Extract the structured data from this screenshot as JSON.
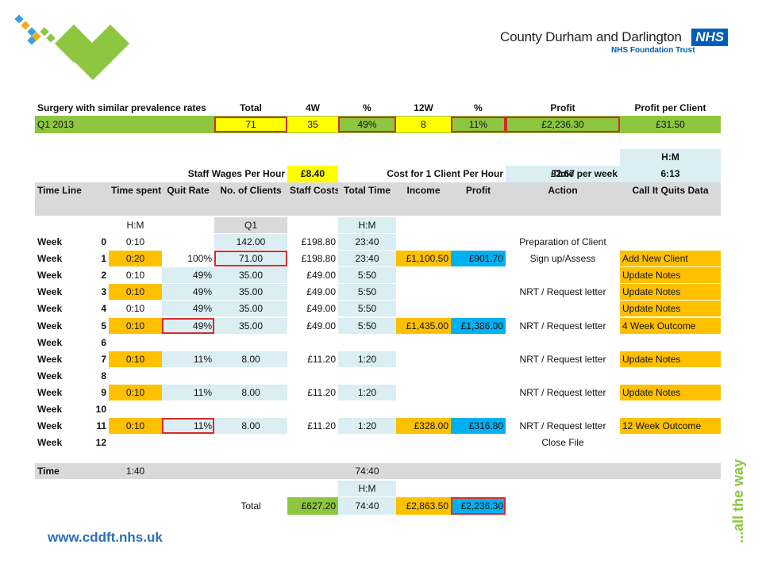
{
  "header": {
    "org_name": "County Durham and Darlington",
    "nhs_badge": "NHS",
    "trust": "NHS Foundation Trust"
  },
  "footer": {
    "url": "www.cddft.nhs.uk"
  },
  "side_text": "...all the way",
  "colors": {
    "green": "#8dc63f",
    "yellow": "#ffff00",
    "orange": "#ffc000",
    "blue": "#00b0f0",
    "light_blue": "#daeef3",
    "grey": "#d9d9d9",
    "nhs_blue": "#005eb8"
  },
  "sheet": {
    "summary": {
      "headers": [
        "Surgery with similar prevalence rates",
        "Total",
        "4W",
        "%",
        "12W",
        "%",
        "Profit",
        "Profit per Client"
      ],
      "row": [
        "Q1 2013",
        "71",
        "35",
        "49%",
        "8",
        "11%",
        "£2,236.30",
        "£31.50"
      ]
    },
    "hm_top": "H:M",
    "staff_wages_label": "Staff Wages Per Hour",
    "staff_wages_value": "£8.40",
    "cost_label": "Cost for 1 Client Per Hour",
    "cost_value": "£2.67",
    "time_per_week_label": "Time per week",
    "time_per_week_value": "6:13",
    "columns": [
      "Time Line",
      "Time spent",
      "Quit Rate",
      "No. of Clients",
      "Staff Costs",
      "Total Time",
      "Income",
      "Profit",
      "Action",
      "Call It Quits Data"
    ],
    "subheaders": {
      "time_spent": "H:M",
      "clients": "Q1",
      "total_time": "H:M"
    },
    "rows": [
      {
        "label": "Week",
        "week": "0",
        "time": "0:10",
        "rate": "",
        "clients": "142.00",
        "staff": "£198.80",
        "total": "23:40",
        "income": "",
        "profit": "",
        "action": "Preparation of Client",
        "cq": ""
      },
      {
        "label": "Week",
        "week": "1",
        "time": "0:20",
        "rate": "100%",
        "clients": "71.00",
        "staff": "£198.80",
        "total": "23:40",
        "income": "£1,100.50",
        "profit": "£901.70",
        "action": "Sign up/Assess",
        "cq": "Add New Client"
      },
      {
        "label": "Week",
        "week": "2",
        "time": "0:10",
        "rate": "49%",
        "clients": "35.00",
        "staff": "£49.00",
        "total": "5:50",
        "income": "",
        "profit": "",
        "action": "",
        "cq": "Update Notes"
      },
      {
        "label": "Week",
        "week": "3",
        "time": "0:10",
        "rate": "49%",
        "clients": "35.00",
        "staff": "£49.00",
        "total": "5:50",
        "income": "",
        "profit": "",
        "action": "NRT / Request letter",
        "cq": "Update Notes"
      },
      {
        "label": "Week",
        "week": "4",
        "time": "0:10",
        "rate": "49%",
        "clients": "35.00",
        "staff": "£49.00",
        "total": "5:50",
        "income": "",
        "profit": "",
        "action": "",
        "cq": "Update Notes"
      },
      {
        "label": "Week",
        "week": "5",
        "time": "0:10",
        "rate": "49%",
        "clients": "35.00",
        "staff": "£49.00",
        "total": "5:50",
        "income": "£1,435.00",
        "profit": "£1,386.00",
        "action": "NRT / Request letter",
        "cq": "4 Week Outcome"
      },
      {
        "label": "Week",
        "week": "6",
        "time": "",
        "rate": "",
        "clients": "",
        "staff": "",
        "total": "",
        "income": "",
        "profit": "",
        "action": "",
        "cq": ""
      },
      {
        "label": "Week",
        "week": "7",
        "time": "0:10",
        "rate": "11%",
        "clients": "8.00",
        "staff": "£11.20",
        "total": "1:20",
        "income": "",
        "profit": "",
        "action": "NRT / Request letter",
        "cq": "Update Notes"
      },
      {
        "label": "Week",
        "week": "8",
        "time": "",
        "rate": "",
        "clients": "",
        "staff": "",
        "total": "",
        "income": "",
        "profit": "",
        "action": "",
        "cq": ""
      },
      {
        "label": "Week",
        "week": "9",
        "time": "0:10",
        "rate": "11%",
        "clients": "8.00",
        "staff": "£11.20",
        "total": "1:20",
        "income": "",
        "profit": "",
        "action": "NRT / Request letter",
        "cq": "Update Notes"
      },
      {
        "label": "Week",
        "week": "10",
        "time": "",
        "rate": "",
        "clients": "",
        "staff": "",
        "total": "",
        "income": "",
        "profit": "",
        "action": "",
        "cq": ""
      },
      {
        "label": "Week",
        "week": "11",
        "time": "0:10",
        "rate": "11%",
        "clients": "8.00",
        "staff": "£11.20",
        "total": "1:20",
        "income": "£328.00",
        "profit": "£316.80",
        "action": "NRT / Request letter",
        "cq": "12 Week Outcome"
      },
      {
        "label": "Week",
        "week": "12",
        "time": "",
        "rate": "",
        "clients": "",
        "staff": "",
        "total": "",
        "income": "",
        "profit": "",
        "action": "Close File",
        "cq": ""
      }
    ],
    "time_row": {
      "label": "Time",
      "time_spent": "1:40",
      "total_time": "74:40"
    },
    "hm_bottom": "H:M",
    "total_row": {
      "label": "Total",
      "staff": "£627.20",
      "total_time": "74:40",
      "income": "£2,863.50",
      "profit": "£2,236.30"
    }
  }
}
